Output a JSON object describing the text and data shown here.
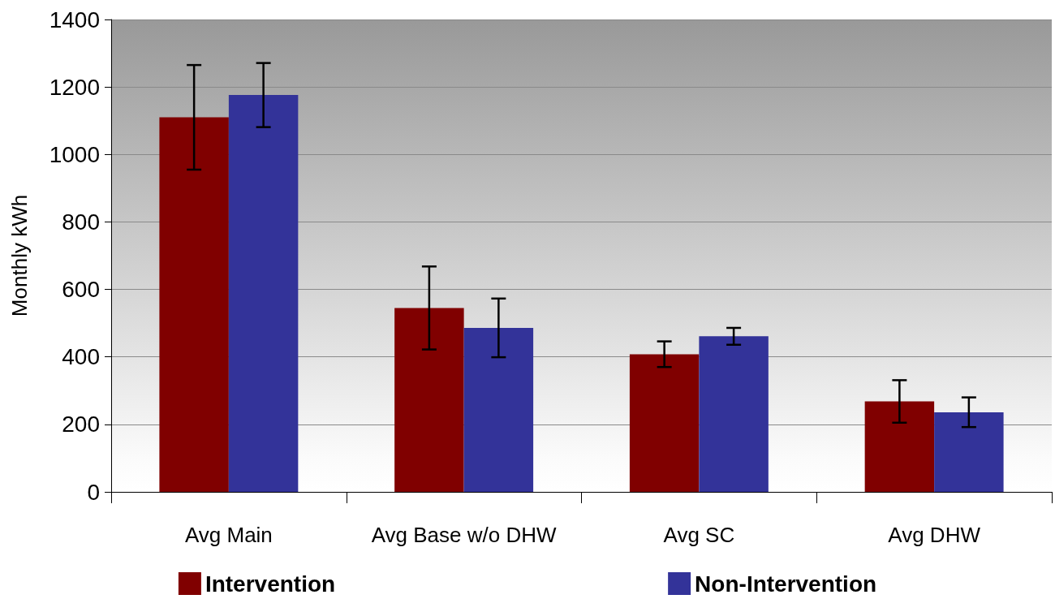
{
  "chart_data": {
    "type": "bar",
    "ylabel": "Monthly kWh",
    "categories": [
      "Avg Main",
      "Avg Base w/o DHW",
      "Avg SC",
      "Avg DHW"
    ],
    "series": [
      {
        "name": "Intervention",
        "color": "#800000",
        "values": [
          1110,
          545,
          408,
          268
        ],
        "errors": [
          155,
          123,
          38,
          63
        ]
      },
      {
        "name": "Non-Intervention",
        "color": "#333399",
        "values": [
          1176,
          486,
          461,
          236
        ],
        "errors": [
          95,
          87,
          25,
          44
        ]
      }
    ],
    "ylim": [
      0,
      1400
    ],
    "yticks": [
      0,
      200,
      400,
      600,
      800,
      1000,
      1200,
      1400
    ],
    "grid": "y",
    "legend": "bottom"
  }
}
